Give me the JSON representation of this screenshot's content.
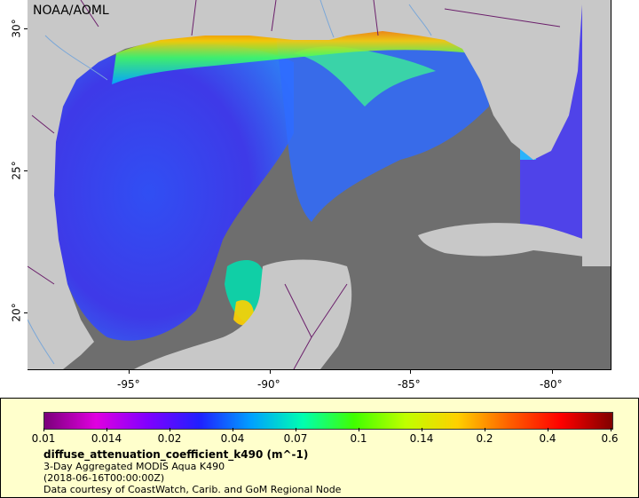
{
  "map": {
    "credit": "NOAA/AOML",
    "x_ticks": [
      "-95°",
      "-90°",
      "-85°",
      "-80°"
    ],
    "y_ticks": [
      "30°",
      "25°",
      "20°"
    ],
    "colors": {
      "ocean_nodata": "#6e6e6e",
      "land": "#c8c8c8",
      "borders": "#6b1f6b",
      "rivers": "#7aa7d8"
    }
  },
  "legend": {
    "labels": [
      "0.01",
      "0.014",
      "0.02",
      "0.04",
      "0.07",
      "0.1",
      "0.14",
      "0.2",
      "0.4",
      "0.6"
    ],
    "title": "diffuse_attenuation_coefficient_k490 (m^-1)",
    "line1": "3-Day Aggregated MODIS Aqua K490",
    "line2": "(2018-06-16T00:00:00Z)",
    "line3": "Data courtesy of CoastWatch, Carib. and GoM Regional Node",
    "gradient": [
      "#7a007a",
      "#e000e0",
      "#8000ff",
      "#2020ff",
      "#00a0ff",
      "#00ffb0",
      "#40ff00",
      "#c0ff00",
      "#ffd000",
      "#ff6000",
      "#ff0000",
      "#800000"
    ]
  }
}
